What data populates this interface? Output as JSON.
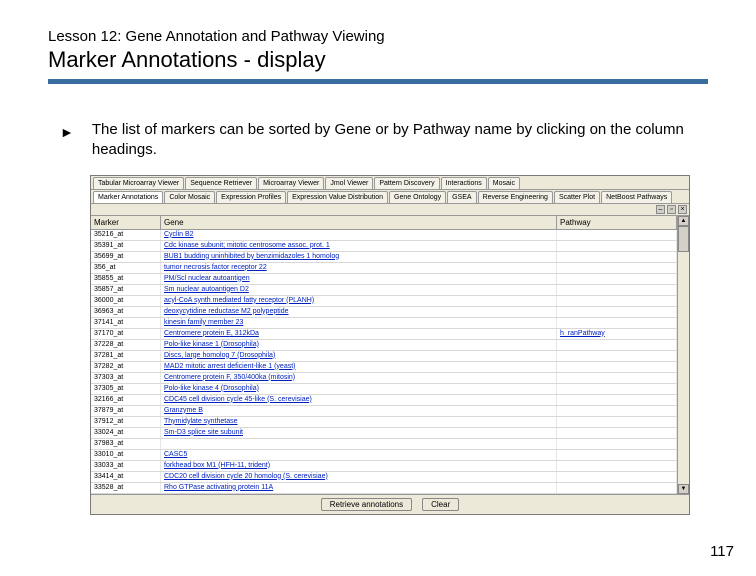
{
  "header": {
    "lesson": "Lesson 12: Gene Annotation and Pathway Viewing",
    "title": "Marker Annotations - display",
    "rule_color": "#3b6ca0"
  },
  "bullet": {
    "arrow": "►",
    "text": "The list of markers can be sorted by Gene or by Pathway name by clicking on the column headings."
  },
  "screenshot": {
    "tabs_row1": [
      "Tabular Microarray Viewer",
      "Sequence Retriever",
      "Microarray Viewer",
      "Jmol Viewer",
      "Pattern Discovery",
      "Interactions",
      "Mosaic"
    ],
    "tabs_row2": [
      "Marker Annotations",
      "Color Mosaic",
      "Expression Profiles",
      "Expression Value Distribution",
      "Gene Ontology",
      "GSEA",
      "Reverse Engineering",
      "Scatter Plot",
      "NetBoost Pathways"
    ],
    "active_tab": "Marker Annotations",
    "columns": {
      "marker": "Marker",
      "gene": "Gene",
      "pathway": "Pathway"
    },
    "rows": [
      {
        "m": "35216_at",
        "g": "Cyclin B2",
        "p": ""
      },
      {
        "m": "35391_at",
        "g": "Cdc kinase subunit; mitotic centrosome assoc. prot. 1",
        "p": ""
      },
      {
        "m": "35699_at",
        "g": "BUB1 budding uninhibited by benzimidazoles 1 homolog",
        "p": ""
      },
      {
        "m": "356_at",
        "g": "tumor necrosis factor receptor 22",
        "p": ""
      },
      {
        "m": "35855_at",
        "g": "PM/Scl nuclear autoantigen",
        "p": ""
      },
      {
        "m": "35857_at",
        "g": "Sm nuclear autoantigen D2",
        "p": ""
      },
      {
        "m": "36000_at",
        "g": "acyl-CoA synth mediated fatty receptor (PLANH)",
        "p": ""
      },
      {
        "m": "36963_at",
        "g": "deoxycytidine reductase M2 polypeptide",
        "p": ""
      },
      {
        "m": "37141_at",
        "g": "kinesin family member 23",
        "p": ""
      },
      {
        "m": "37170_at",
        "g": "Centromere protein E, 312kDa",
        "p": "h_ranPathway"
      },
      {
        "m": "37228_at",
        "g": "Polo-like kinase 1 (Drosophila)",
        "p": ""
      },
      {
        "m": "37281_at",
        "g": "Discs, large homolog 7 (Drosophila)",
        "p": ""
      },
      {
        "m": "37282_at",
        "g": "MAD2 mitotic arrest deficient-like 1 (yeast)",
        "p": ""
      },
      {
        "m": "37303_at",
        "g": "Centromere protein F, 350/400ka (mitosin)",
        "p": ""
      },
      {
        "m": "37305_at",
        "g": "Polo-like kinase 4 (Drosophila)",
        "p": ""
      },
      {
        "m": "32166_at",
        "g": "CDC45 cell division cycle 45-like (S. cerevisiae)",
        "p": ""
      },
      {
        "m": "37879_at",
        "g": "Granzyme B",
        "p": ""
      },
      {
        "m": "37912_at",
        "g": "Thymidylate synthetase",
        "p": ""
      },
      {
        "m": "33024_at",
        "g": "Sm-D3 splice site subunit",
        "p": ""
      },
      {
        "m": "37983_at",
        "g": "",
        "p": ""
      },
      {
        "m": "33010_at",
        "g": "CASC5",
        "p": ""
      },
      {
        "m": "33033_at",
        "g": "forkhead box M1 (HFH-11, trident)",
        "p": ""
      },
      {
        "m": "33414_at",
        "g": "CDC20 cell division cycle 20 homolog (S. cerevisiae)",
        "p": ""
      },
      {
        "m": "33528_at",
        "g": "Rho GTPase activating protein 11A",
        "p": ""
      }
    ],
    "buttons": {
      "retrieve": "Retrieve annotations",
      "clear": "Clear"
    },
    "window_controls": {
      "min": "–",
      "max": "▫",
      "close": "×"
    }
  },
  "page_number": "117"
}
